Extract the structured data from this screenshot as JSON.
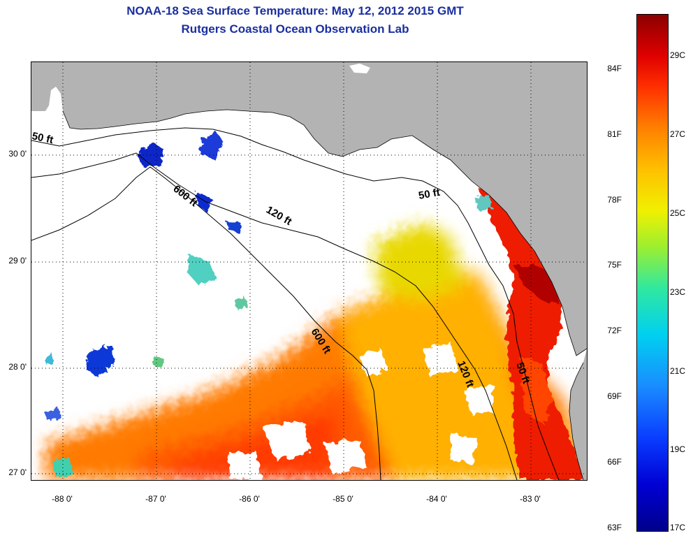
{
  "title_line1": "NOAA-18 Sea Surface Temperature:  May 12, 2012 2015 GMT",
  "title_line2": "Rutgers Coastal Ocean Observation Lab",
  "lat_labels": [
    "30 0'",
    "29 0'",
    "28 0'",
    "27 0'"
  ],
  "lon_labels": [
    "-88 0'",
    "-87 0'",
    "-86 0'",
    "-85 0'",
    "-84 0'",
    "-83 0'"
  ],
  "contour_labels": {
    "c50_west": "50 ft",
    "c600_north": "600 ft",
    "c120_north": "120 ft",
    "c50_east": "50 ft",
    "c600_south": "600 ft",
    "c120_south": "120 ft",
    "c50_south": "50 ft"
  },
  "colorbar": {
    "fahrenheit": [
      "84F",
      "81F",
      "78F",
      "75F",
      "72F",
      "69F",
      "66F",
      "63F"
    ],
    "celsius": [
      "29C",
      "27C",
      "25C",
      "23C",
      "21C",
      "19C",
      "17C"
    ]
  },
  "colors": {
    "land": "#b3b3b3",
    "no_data": "#ffffff",
    "title": "#1a2fa0"
  }
}
